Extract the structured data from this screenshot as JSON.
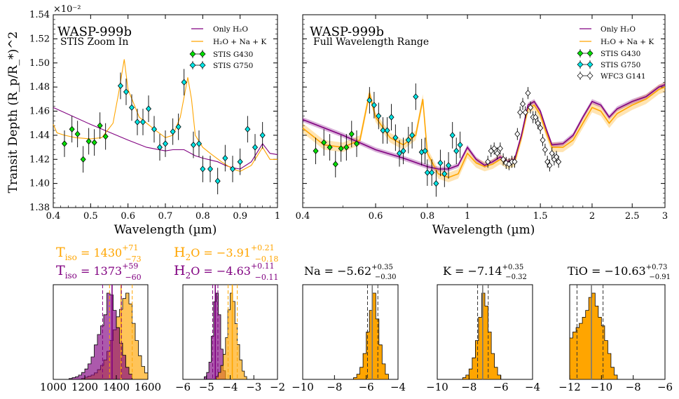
{
  "figure": {
    "ylabel": "Transit Depth (R_p/R_*)^2",
    "yexp": "×10⁻²",
    "xlabel": "Wavelength (µm)"
  },
  "colors": {
    "only_h2o": "#800080",
    "full": "#ffa500",
    "g430": "#00e000",
    "g750": "#00e5e5",
    "wfc3": "#ffffff"
  },
  "legend": {
    "only_h2o": "Only H₂O",
    "full": "H₂O + Na + K",
    "g430": "STIS G430",
    "g750": "STIS G750",
    "wfc3": "WFC3 G141"
  },
  "panels": {
    "left": {
      "title": "WASP-999b",
      "subtitle": "STIS Zoom In",
      "xticks": [
        "0.4",
        "0.5",
        "0.6",
        "0.7",
        "0.8",
        "0.9",
        "1"
      ],
      "yticks": [
        "1.38",
        "1.40",
        "1.42",
        "1.44",
        "1.46",
        "1.48",
        "1.50",
        "1.52",
        "1.54"
      ]
    },
    "right": {
      "title": "WASP-999b",
      "subtitle": "Full Wavelength Range",
      "xticks": [
        "0.4",
        "0.6",
        "0.8",
        "1",
        "1.5",
        "2",
        "2.5",
        "3"
      ]
    }
  },
  "histograms": [
    {
      "label_top": "T_iso = 1430^{+71}_{-73}",
      "label_bottom": "T_iso = 1373^{+59}_{-60}",
      "top_main": "T",
      "top_sub": "iso",
      "top_val": " = 1430",
      "top_sup": "+71",
      "top_subv": "−73",
      "bot_main": "T",
      "bot_sub": "iso",
      "bot_val": " = 1373",
      "bot_sup": "+59",
      "bot_subv": "−60",
      "xticks": [
        "1000",
        "1200",
        "1400",
        "1600"
      ]
    },
    {
      "top_main": "H",
      "top_sub": "2",
      "top_val": "O = −3.91",
      "top_sup": "+0.21",
      "top_subv": "−0.18",
      "bot_main": "H",
      "bot_sub": "2",
      "bot_val": "O = −4.63",
      "bot_sup": "+0.11",
      "bot_subv": "−0.11",
      "xticks": [
        "−6",
        "−5",
        "−4",
        "−3",
        "−2"
      ]
    },
    {
      "main": "Na = −5.62",
      "sup": "+0.35",
      "subv": "−0.30",
      "xticks": [
        "−10",
        "−8",
        "−6",
        "−4"
      ]
    },
    {
      "main": "K = −7.14",
      "sup": "+0.35",
      "subv": "−0.32",
      "xticks": [
        "−10",
        "−8",
        "−6",
        "−4"
      ]
    },
    {
      "main": "TiO = −10.63",
      "sup": "+0.73",
      "subv": "−0.91",
      "xticks": [
        "−12",
        "−10",
        "−8",
        "−6"
      ]
    }
  ],
  "chart_data": [
    {
      "type": "scatter",
      "title": "WASP-999b",
      "subtitle": "STIS Zoom In",
      "xlabel": "Wavelength (µm)",
      "ylabel": "Transit Depth (R_p/R_*)^2",
      "xlim": [
        0.4,
        1.0
      ],
      "ylim": [
        1.38,
        1.54
      ],
      "y_scale_factor": "×10⁻²",
      "series": [
        {
          "name": "STIS G430",
          "x": [
            0.43,
            0.45,
            0.465,
            0.48,
            0.495,
            0.51,
            0.525,
            0.54
          ],
          "y": [
            1.433,
            1.445,
            1.441,
            1.42,
            1.435,
            1.434,
            1.448,
            1.439
          ],
          "err": [
            0.011,
            0.011,
            0.011,
            0.011,
            0.011,
            0.011,
            0.011,
            0.011
          ]
        },
        {
          "name": "STIS G750",
          "x": [
            0.58,
            0.595,
            0.61,
            0.625,
            0.64,
            0.655,
            0.67,
            0.685,
            0.7,
            0.72,
            0.735,
            0.75,
            0.775,
            0.79,
            0.8,
            0.82,
            0.84,
            0.86,
            0.88,
            0.9,
            0.92,
            0.94,
            0.96
          ],
          "y": [
            1.481,
            1.476,
            1.463,
            1.451,
            1.451,
            1.462,
            1.445,
            1.43,
            1.433,
            1.443,
            1.447,
            1.484,
            1.432,
            1.433,
            1.412,
            1.412,
            1.402,
            1.421,
            1.412,
            1.418,
            1.445,
            1.43,
            1.44
          ],
          "err": [
            0.011,
            0.011,
            0.011,
            0.011,
            0.011,
            0.011,
            0.011,
            0.011,
            0.011,
            0.011,
            0.011,
            0.011,
            0.011,
            0.011,
            0.011,
            0.011,
            0.011,
            0.011,
            0.011,
            0.011,
            0.011,
            0.011,
            0.011
          ]
        },
        {
          "name": "Only H₂O",
          "type": "line",
          "x": [
            0.4,
            0.5,
            0.6,
            0.65,
            0.7,
            0.72,
            0.75,
            0.78,
            0.8,
            0.84,
            0.86,
            0.88,
            0.9,
            0.93,
            0.96,
            0.98,
            1.0
          ],
          "y": [
            1.463,
            1.449,
            1.436,
            1.43,
            1.427,
            1.428,
            1.428,
            1.423,
            1.421,
            1.418,
            1.415,
            1.413,
            1.412,
            1.418,
            1.433,
            1.425,
            1.424
          ]
        },
        {
          "name": "H₂O + Na + K",
          "type": "line",
          "x": [
            0.4,
            0.41,
            0.43,
            0.46,
            0.5,
            0.53,
            0.56,
            0.575,
            0.59,
            0.6,
            0.63,
            0.67,
            0.7,
            0.72,
            0.74,
            0.76,
            0.77,
            0.78,
            0.8,
            0.82,
            0.85,
            0.88,
            0.9,
            0.93,
            0.96,
            0.98,
            1.0
          ],
          "y": [
            1.449,
            1.442,
            1.44,
            1.438,
            1.437,
            1.438,
            1.45,
            1.475,
            1.503,
            1.478,
            1.455,
            1.445,
            1.438,
            1.44,
            1.455,
            1.488,
            1.47,
            1.44,
            1.43,
            1.425,
            1.418,
            1.412,
            1.41,
            1.415,
            1.43,
            1.42,
            1.42
          ]
        }
      ]
    },
    {
      "type": "scatter",
      "title": "WASP-999b",
      "subtitle": "Full Wavelength Range",
      "xlabel": "Wavelength (µm)",
      "xscale": "log",
      "xlim": [
        0.4,
        3.0
      ],
      "ylim": [
        1.38,
        1.54
      ],
      "series": [
        {
          "name": "STIS G430",
          "x": [
            0.43,
            0.45,
            0.465,
            0.48,
            0.495,
            0.51,
            0.525,
            0.54
          ],
          "y": [
            1.427,
            1.434,
            1.43,
            1.416,
            1.429,
            1.43,
            1.441,
            1.433
          ],
          "err": [
            0.011,
            0.011,
            0.011,
            0.011,
            0.011,
            0.011,
            0.011,
            0.011
          ]
        },
        {
          "name": "STIS G750",
          "x": [
            0.58,
            0.595,
            0.61,
            0.625,
            0.64,
            0.655,
            0.67,
            0.685,
            0.7,
            0.72,
            0.735,
            0.75,
            0.775,
            0.79,
            0.8,
            0.82,
            0.84,
            0.86,
            0.88,
            0.9,
            0.92,
            0.94,
            0.96
          ],
          "y": [
            1.469,
            1.465,
            1.456,
            1.444,
            1.444,
            1.455,
            1.438,
            1.425,
            1.427,
            1.436,
            1.44,
            1.472,
            1.426,
            1.427,
            1.409,
            1.409,
            1.4,
            1.417,
            1.408,
            1.415,
            1.44,
            1.427,
            1.432
          ],
          "err": [
            0.011,
            0.011,
            0.011,
            0.011,
            0.011,
            0.011,
            0.011,
            0.011,
            0.011,
            0.011,
            0.011,
            0.011,
            0.011,
            0.011,
            0.011,
            0.011,
            0.011,
            0.011,
            0.011,
            0.011,
            0.011,
            0.011,
            0.011
          ]
        },
        {
          "name": "WFC3 G141",
          "x": [
            1.12,
            1.14,
            1.16,
            1.18,
            1.2,
            1.22,
            1.24,
            1.26,
            1.28,
            1.3,
            1.32,
            1.34,
            1.36,
            1.38,
            1.4,
            1.42,
            1.44,
            1.46,
            1.48,
            1.5,
            1.52,
            1.54,
            1.56,
            1.58,
            1.6,
            1.62,
            1.64,
            1.66
          ],
          "y": [
            1.418,
            1.427,
            1.429,
            1.425,
            1.429,
            1.42,
            1.417,
            1.416,
            1.418,
            1.418,
            1.441,
            1.459,
            1.466,
            1.459,
            1.475,
            1.463,
            1.455,
            1.455,
            1.45,
            1.446,
            1.436,
            1.428,
            1.418,
            1.415,
            1.425,
            1.42,
            1.422,
            1.418
          ],
          "err": [
            0.005,
            0.005,
            0.005,
            0.005,
            0.005,
            0.005,
            0.005,
            0.005,
            0.005,
            0.005,
            0.005,
            0.005,
            0.005,
            0.005,
            0.005,
            0.005,
            0.005,
            0.005,
            0.005,
            0.005,
            0.005,
            0.005,
            0.005,
            0.005,
            0.005,
            0.005,
            0.005,
            0.005
          ]
        },
        {
          "name": "Only H₂O",
          "type": "line",
          "x": [
            0.4,
            0.5,
            0.6,
            0.7,
            0.8,
            0.85,
            0.9,
            0.95,
            1.0,
            1.05,
            1.1,
            1.15,
            1.2,
            1.25,
            1.3,
            1.35,
            1.4,
            1.45,
            1.5,
            1.55,
            1.6,
            1.7,
            1.8,
            1.9,
            2.0,
            2.1,
            2.2,
            2.3,
            2.5,
            2.7,
            2.9,
            3.0
          ],
          "y": [
            1.453,
            1.44,
            1.428,
            1.421,
            1.414,
            1.412,
            1.412,
            1.415,
            1.43,
            1.42,
            1.415,
            1.418,
            1.422,
            1.418,
            1.42,
            1.44,
            1.465,
            1.468,
            1.46,
            1.445,
            1.432,
            1.433,
            1.44,
            1.455,
            1.468,
            1.465,
            1.455,
            1.462,
            1.468,
            1.472,
            1.48,
            1.482
          ]
        },
        {
          "name": "H₂O + Na + K",
          "type": "line",
          "x": [
            0.4,
            0.45,
            0.5,
            0.55,
            0.58,
            0.6,
            0.65,
            0.7,
            0.75,
            0.78,
            0.8,
            0.85,
            0.9,
            0.95,
            1.0,
            1.05,
            1.1,
            1.15,
            1.2,
            1.25,
            1.3,
            1.35,
            1.4,
            1.45,
            1.5,
            1.55,
            1.6,
            1.7,
            1.8,
            1.9,
            2.0,
            2.1,
            2.2,
            2.3,
            2.5,
            2.7,
            2.9,
            3.0
          ],
          "y": [
            1.446,
            1.432,
            1.43,
            1.436,
            1.475,
            1.455,
            1.438,
            1.432,
            1.44,
            1.47,
            1.425,
            1.408,
            1.405,
            1.408,
            1.425,
            1.417,
            1.414,
            1.416,
            1.42,
            1.416,
            1.418,
            1.438,
            1.462,
            1.465,
            1.457,
            1.442,
            1.43,
            1.43,
            1.436,
            1.45,
            1.463,
            1.46,
            1.45,
            1.458,
            1.465,
            1.47,
            1.478,
            1.48
          ]
        }
      ]
    },
    {
      "type": "histogram",
      "xlim": [
        1000,
        1600
      ],
      "series": [
        {
          "name": "H₂O + Na + K",
          "bins": [
            1180,
            1200,
            1220,
            1240,
            1260,
            1280,
            1300,
            1320,
            1340,
            1360,
            1380,
            1400,
            1420,
            1440,
            1460,
            1480,
            1500,
            1520,
            1540,
            1560,
            1580,
            1600
          ],
          "counts": [
            1,
            2,
            3,
            4,
            6,
            9,
            13,
            18,
            26,
            36,
            46,
            58,
            65,
            75,
            80,
            70,
            52,
            36,
            22,
            12,
            6
          ]
        },
        {
          "name": "Only H₂O",
          "bins": [
            1100,
            1120,
            1140,
            1160,
            1180,
            1200,
            1220,
            1240,
            1260,
            1280,
            1300,
            1320,
            1340,
            1360,
            1380,
            1400,
            1420,
            1440,
            1460,
            1480,
            1500
          ],
          "counts": [
            1,
            2,
            3,
            5,
            8,
            12,
            18,
            26,
            40,
            52,
            62,
            75,
            100,
            98,
            80,
            60,
            42,
            28,
            14,
            6
          ]
        }
      ]
    },
    {
      "type": "histogram",
      "xlim": [
        -6,
        -2
      ],
      "series": [
        {
          "name": "Only H₂O",
          "bins": [
            -5.1,
            -5.0,
            -4.9,
            -4.8,
            -4.7,
            -4.6,
            -4.5,
            -4.4,
            -4.3,
            -4.2
          ],
          "counts": [
            3,
            8,
            20,
            50,
            90,
            100,
            75,
            35,
            10
          ]
        },
        {
          "name": "H₂O + Na + K",
          "bins": [
            -4.6,
            -4.5,
            -4.4,
            -4.3,
            -4.2,
            -4.1,
            -4.0,
            -3.9,
            -3.8,
            -3.7,
            -3.6,
            -3.5,
            -3.4,
            -3.3
          ],
          "counts": [
            2,
            5,
            10,
            18,
            30,
            50,
            62,
            56,
            40,
            25,
            14,
            6,
            2
          ]
        }
      ]
    },
    {
      "type": "histogram",
      "xlim": [
        -10,
        -4
      ],
      "series": [
        {
          "name": "H₂O + Na + K",
          "bins": [
            -6.8,
            -6.6,
            -6.4,
            -6.2,
            -6.0,
            -5.8,
            -5.6,
            -5.4,
            -5.2,
            -5.0,
            -4.8,
            -4.6
          ],
          "counts": [
            2,
            6,
            14,
            30,
            55,
            80,
            100,
            70,
            40,
            18,
            6
          ]
        }
      ]
    },
    {
      "type": "histogram",
      "xlim": [
        -10,
        -4
      ],
      "series": [
        {
          "name": "H₂O + Na + K",
          "bins": [
            -8.4,
            -8.2,
            -8.0,
            -7.8,
            -7.6,
            -7.4,
            -7.2,
            -7.0,
            -6.8,
            -6.6,
            -6.4,
            -6.2,
            -6.0
          ],
          "counts": [
            2,
            5,
            12,
            25,
            45,
            72,
            100,
            85,
            55,
            30,
            14,
            5
          ]
        }
      ]
    },
    {
      "type": "histogram",
      "xlim": [
        -12,
        -6
      ],
      "series": [
        {
          "name": "H₂O + Na + K",
          "bins": [
            -12.0,
            -11.8,
            -11.6,
            -11.4,
            -11.2,
            -11.0,
            -10.8,
            -10.6,
            -10.4,
            -10.2,
            -10.0,
            -9.8,
            -9.6,
            -9.4,
            -9.2,
            -9.0
          ],
          "counts": [
            48,
            55,
            60,
            65,
            72,
            80,
            95,
            100,
            85,
            72,
            62,
            45,
            30,
            14,
            5
          ]
        }
      ]
    }
  ]
}
